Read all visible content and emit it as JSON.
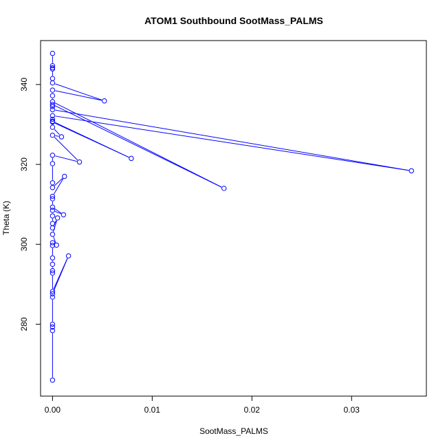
{
  "chart_data": {
    "type": "line",
    "title": "ATOM1 Southbound SootMass_PALMS",
    "xlabel": "SootMass_PALMS",
    "ylabel": "Theta (K)",
    "xlim": [
      -0.0012,
      0.0375
    ],
    "ylim": [
      262,
      351
    ],
    "x_ticks": [
      0,
      0.01,
      0.02,
      0.03
    ],
    "x_tick_labels": [
      "0.00",
      "0.01",
      "0.02",
      "0.03"
    ],
    "y_ticks": [
      280,
      300,
      320,
      340
    ],
    "y_tick_labels": [
      "280",
      "300",
      "320",
      "340"
    ],
    "grid": false,
    "legend": "none",
    "series": [
      {
        "color": "#0000ff",
        "marker": "open-circle",
        "style": "line+points",
        "points": [
          [
            0,
            266.0
          ],
          [
            0,
            278.4
          ],
          [
            0,
            279.3
          ],
          [
            0,
            280.0
          ],
          [
            0,
            286.8
          ],
          [
            0,
            287.6
          ],
          [
            0.0016,
            297.1
          ],
          [
            0,
            288.2
          ],
          [
            0,
            292.8
          ],
          [
            0,
            293.4
          ],
          [
            0,
            295.0
          ],
          [
            0,
            296.6
          ],
          [
            0,
            299.7
          ],
          [
            0,
            300.4
          ],
          [
            0.0004,
            299.8
          ],
          [
            0,
            302.5
          ],
          [
            0.0005,
            306.6
          ],
          [
            0,
            304.1
          ],
          [
            0,
            305.2
          ],
          [
            0,
            307.1
          ],
          [
            0,
            308.5
          ],
          [
            0.0011,
            307.4
          ],
          [
            0,
            309.3
          ],
          [
            0,
            311.4
          ],
          [
            0,
            312.0
          ],
          [
            0.0012,
            317.0
          ],
          [
            0,
            314.2
          ],
          [
            0,
            315.4
          ],
          [
            0,
            320.2
          ],
          [
            0,
            322.3
          ],
          [
            0.0027,
            320.6
          ],
          [
            0,
            327.3
          ],
          [
            0.0009,
            326.9
          ],
          [
            0,
            329.3
          ],
          [
            0,
            330.6
          ],
          [
            0.0079,
            321.5
          ],
          [
            0,
            330.8
          ],
          [
            0,
            331.3
          ],
          [
            0,
            332.2
          ],
          [
            0.036,
            318.4
          ],
          [
            0,
            333.7
          ],
          [
            0,
            334.5
          ],
          [
            0,
            335.0
          ],
          [
            0.0172,
            314.0
          ],
          [
            0,
            335.7
          ],
          [
            0,
            337.2
          ],
          [
            0,
            338.6
          ],
          [
            0.0052,
            335.9
          ],
          [
            0,
            340.4
          ],
          [
            0,
            341.5
          ],
          [
            0,
            343.9
          ],
          [
            0,
            344.2
          ],
          [
            0,
            344.7
          ],
          [
            0,
            347.8
          ]
        ]
      }
    ]
  }
}
